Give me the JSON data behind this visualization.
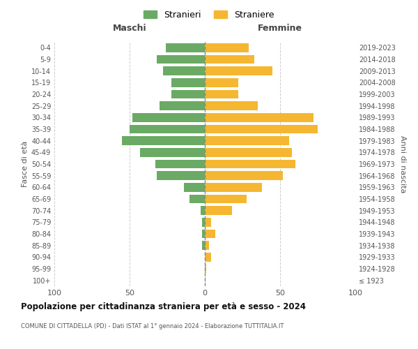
{
  "age_groups": [
    "100+",
    "95-99",
    "90-94",
    "85-89",
    "80-84",
    "75-79",
    "70-74",
    "65-69",
    "60-64",
    "55-59",
    "50-54",
    "45-49",
    "40-44",
    "35-39",
    "30-34",
    "25-29",
    "20-24",
    "15-19",
    "10-14",
    "5-9",
    "0-4"
  ],
  "birth_years": [
    "≤ 1923",
    "1924-1928",
    "1929-1933",
    "1934-1938",
    "1939-1943",
    "1944-1948",
    "1949-1953",
    "1954-1958",
    "1959-1963",
    "1964-1968",
    "1969-1973",
    "1974-1978",
    "1979-1983",
    "1984-1988",
    "1989-1993",
    "1994-1998",
    "1999-2003",
    "2004-2008",
    "2009-2013",
    "2014-2018",
    "2019-2023"
  ],
  "maschi": [
    0,
    0,
    0,
    2,
    2,
    2,
    3,
    10,
    14,
    32,
    33,
    43,
    55,
    50,
    48,
    30,
    22,
    22,
    28,
    32,
    26
  ],
  "femmine": [
    0,
    1,
    4,
    3,
    7,
    4,
    18,
    28,
    38,
    52,
    60,
    58,
    56,
    75,
    72,
    35,
    22,
    22,
    45,
    33,
    29
  ],
  "color_maschi": "#6aaa64",
  "color_femmine": "#f5b731",
  "title": "Popolazione per cittadinanza straniera per età e sesso - 2024",
  "subtitle": "COMUNE DI CITTADELLA (PD) - Dati ISTAT al 1° gennaio 2024 - Elaborazione TUTTITALIA.IT",
  "xlabel_left": "Maschi",
  "xlabel_right": "Femmine",
  "ylabel_left": "Fasce di età",
  "ylabel_right": "Anni di nascita",
  "xlim": 100,
  "legend_maschi": "Stranieri",
  "legend_femmine": "Straniere",
  "background_color": "#ffffff",
  "grid_color": "#cccccc"
}
